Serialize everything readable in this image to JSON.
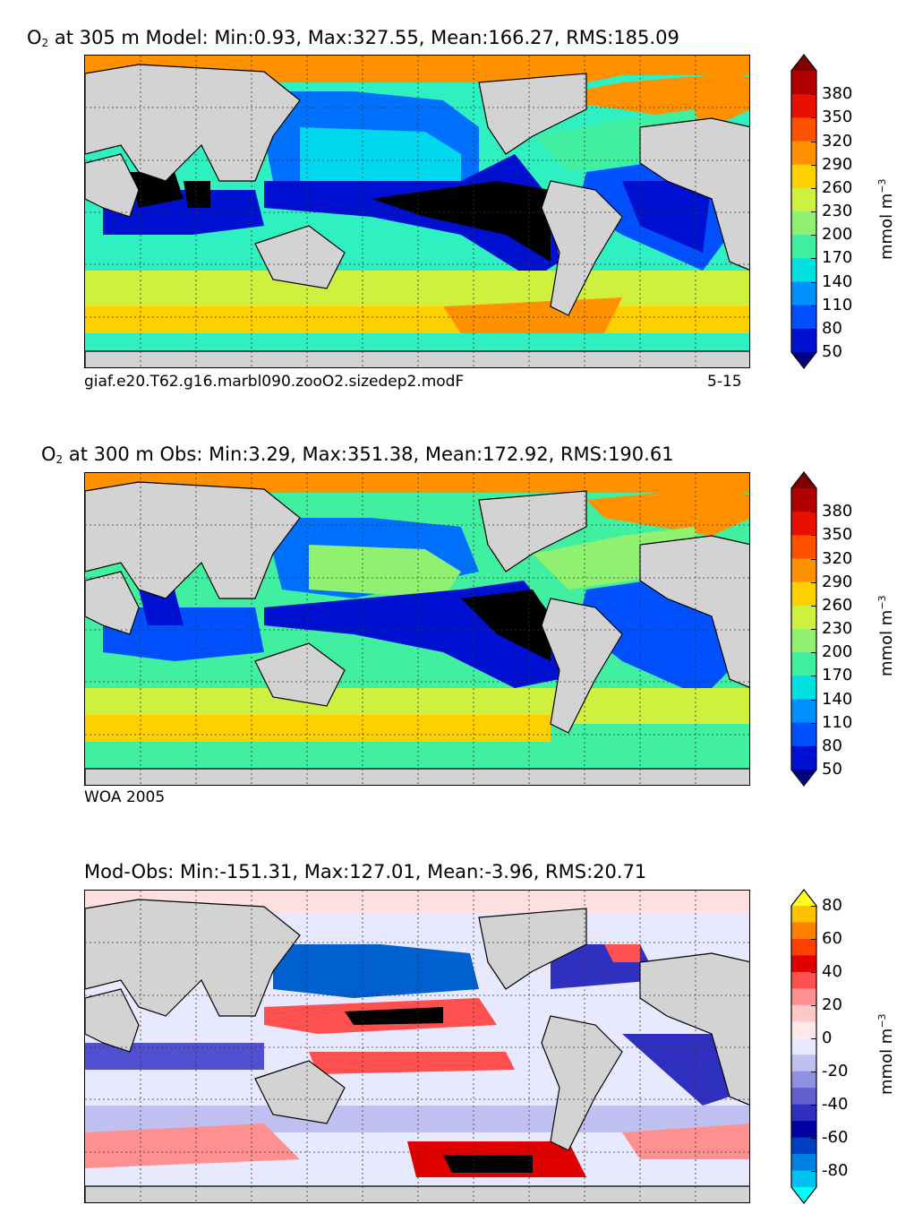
{
  "panels": [
    {
      "title_species": "O",
      "title_sub": "2",
      "title_rest": " at 305 m Model: Min:0.93, Max:327.55, Mean:166.27, RMS:185.09",
      "footer_left": "giaf.e20.T62.g16.marbl090.zooO2.sizedep2.modF",
      "footer_right": "5-15",
      "colorbar": {
        "unit_main": "mmol m",
        "unit_sup": "−3",
        "tick_labels": [
          "380",
          "350",
          "320",
          "290",
          "260",
          "230",
          "200",
          "170",
          "140",
          "110",
          "80",
          "50"
        ],
        "colors": [
          "#800000",
          "#b00000",
          "#e81000",
          "#ff5000",
          "#ff9000",
          "#ffd000",
          "#d0f040",
          "#90f070",
          "#40f0a0",
          "#00e0e0",
          "#0090ff",
          "#0050ff",
          "#0010d0",
          "#000080"
        ]
      }
    },
    {
      "title_species": "O",
      "title_sub": "2",
      "title_rest": " at 300 m Obs: Min:3.29, Max:351.38, Mean:172.92, RMS:190.61",
      "footer_left": "WOA 2005",
      "footer_right": "",
      "colorbar": {
        "unit_main": "mmol m",
        "unit_sup": "−3",
        "tick_labels": [
          "380",
          "350",
          "320",
          "290",
          "260",
          "230",
          "200",
          "170",
          "140",
          "110",
          "80",
          "50"
        ],
        "colors": [
          "#800000",
          "#b00000",
          "#e81000",
          "#ff5000",
          "#ff9000",
          "#ffd000",
          "#d0f040",
          "#90f070",
          "#40f0a0",
          "#00e0e0",
          "#0090ff",
          "#0050ff",
          "#0010d0",
          "#000080"
        ]
      }
    },
    {
      "title_species": "",
      "title_sub": "",
      "title_rest": "Mod-Obs: Min:-151.31, Max:127.01, Mean:-3.96, RMS:20.71",
      "footer_left": "",
      "footer_right": "",
      "colorbar": {
        "unit_main": "mmol m",
        "unit_sup": "−3",
        "tick_labels": [
          "80",
          "60",
          "40",
          "20",
          "0",
          "-20",
          "-40",
          "-60",
          "-80"
        ],
        "colors": [
          "#ffff20",
          "#ffc000",
          "#ff8000",
          "#ff4000",
          "#e00000",
          "#ff5050",
          "#ff9090",
          "#ffc8c8",
          "#ffe8e8",
          "#e8e8ff",
          "#c0c0f0",
          "#9090e0",
          "#6060d0",
          "#3030c0",
          "#0000a0",
          "#0040c0",
          "#0080e0",
          "#00c0f0",
          "#00ffff"
        ]
      }
    }
  ],
  "chart_data": [
    {
      "type": "heatmap",
      "title": "O2 at 305 m Model: Min:0.93, Max:327.55, Mean:166.27, RMS:185.09",
      "variable": "O2",
      "depth_m": 305,
      "source": "Model",
      "stats": {
        "min": 0.93,
        "max": 327.55,
        "mean": 166.27,
        "rms": 185.09
      },
      "colorbar_ticks": [
        50,
        80,
        110,
        140,
        170,
        200,
        230,
        260,
        290,
        320,
        350,
        380
      ],
      "colorbar_extend": "both",
      "units": "mmol m^-3",
      "grid": true
    },
    {
      "type": "heatmap",
      "title": "O2 at 300 m Obs: Min:3.29, Max:351.38, Mean:172.92, RMS:190.61",
      "variable": "O2",
      "depth_m": 300,
      "source": "Obs",
      "stats": {
        "min": 3.29,
        "max": 351.38,
        "mean": 172.92,
        "rms": 190.61
      },
      "colorbar_ticks": [
        50,
        80,
        110,
        140,
        170,
        200,
        230,
        260,
        290,
        320,
        350,
        380
      ],
      "colorbar_extend": "both",
      "units": "mmol m^-3",
      "grid": true
    },
    {
      "type": "heatmap",
      "title": "Mod-Obs: Min:-151.31, Max:127.01, Mean:-3.96, RMS:20.71",
      "variable": "O2 difference",
      "source": "Model minus Obs",
      "stats": {
        "min": -151.31,
        "max": 127.01,
        "mean": -3.96,
        "rms": 20.71
      },
      "colorbar_ticks": [
        -80,
        -60,
        -40,
        -20,
        0,
        20,
        40,
        60,
        80
      ],
      "colorbar_extend": "both",
      "units": "mmol m^-3",
      "grid": true
    }
  ]
}
